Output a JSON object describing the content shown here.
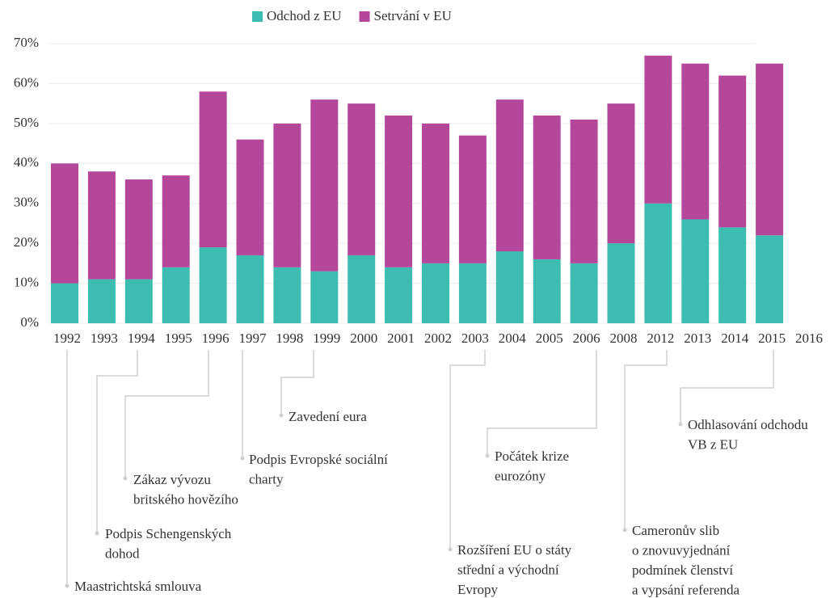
{
  "chart_data": {
    "type": "stacked_bar",
    "categories": [
      "1992",
      "1993",
      "1994",
      "1995",
      "1996",
      "1997",
      "1998",
      "1999",
      "2000",
      "2001",
      "2002",
      "2003",
      "2004",
      "2005",
      "2006",
      "2008",
      "2012",
      "2013",
      "2014",
      "2015",
      "2016"
    ],
    "series": [
      {
        "name": "Odchod z EU",
        "color": "#3dbdb1",
        "values": [
          10,
          11,
          11,
          14,
          19,
          17,
          14,
          13,
          17,
          14,
          15,
          15,
          18,
          16,
          15,
          20,
          30,
          26,
          24,
          22,
          null
        ]
      },
      {
        "name": "Setrvání v EU",
        "color": "#b5479a",
        "values": [
          30,
          27,
          25,
          23,
          39,
          29,
          36,
          43,
          38,
          38,
          35,
          32,
          38,
          36,
          36,
          35,
          37,
          39,
          38,
          43,
          null
        ]
      }
    ],
    "ylim": [
      0,
      70
    ],
    "yticks": [
      {
        "value": 0,
        "label": "0%"
      },
      {
        "value": 10,
        "label": "10%"
      },
      {
        "value": 20,
        "label": "20%"
      },
      {
        "value": 30,
        "label": "30%"
      },
      {
        "value": 40,
        "label": "40%"
      },
      {
        "value": 50,
        "label": "50%"
      },
      {
        "value": 60,
        "label": "60%"
      },
      {
        "value": 70,
        "label": "70%"
      }
    ],
    "grid": true,
    "legend": "top",
    "annotations": [
      [
        "Maastrichtská smlouva"
      ],
      [
        "Podpis Schengenských",
        "dohod"
      ],
      [
        "Zákaz vývozu",
        "britského hovězího"
      ],
      [
        "Podpis Evropské sociální",
        "charty"
      ],
      [
        "Zavedení eura"
      ],
      [
        "Rozšíření EU o státy",
        "střední a východní",
        "Evropy"
      ],
      [
        "Počátek krize",
        "eurozóny"
      ],
      [
        "Cameronův slib",
        "o znovuvyjednání",
        "podmínek členství",
        "a vypsání referenda"
      ],
      [
        "Odhlasování odchodu",
        "VB z EU"
      ]
    ]
  }
}
